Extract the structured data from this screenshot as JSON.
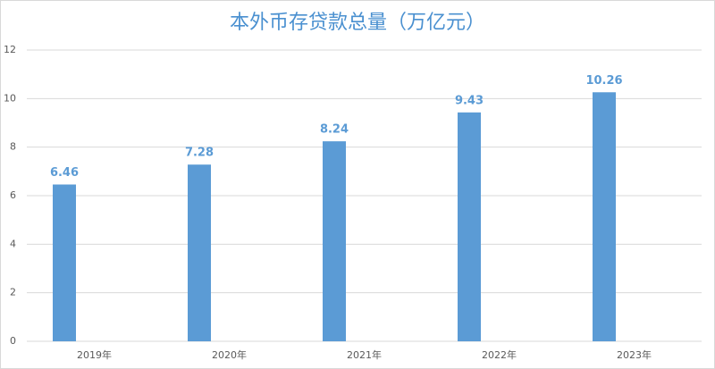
{
  "chart_data": {
    "type": "bar",
    "title": "本外币存贷款总量（万亿元）",
    "categories": [
      "2019年",
      "2020年",
      "2021年",
      "2022年",
      "2023年"
    ],
    "values": [
      6.46,
      7.28,
      8.24,
      9.43,
      10.26
    ],
    "color": "#5b9bd5",
    "ylim": [
      0,
      12
    ],
    "yticks": [
      0,
      2,
      4,
      6,
      8,
      10,
      12
    ],
    "grid": true
  }
}
